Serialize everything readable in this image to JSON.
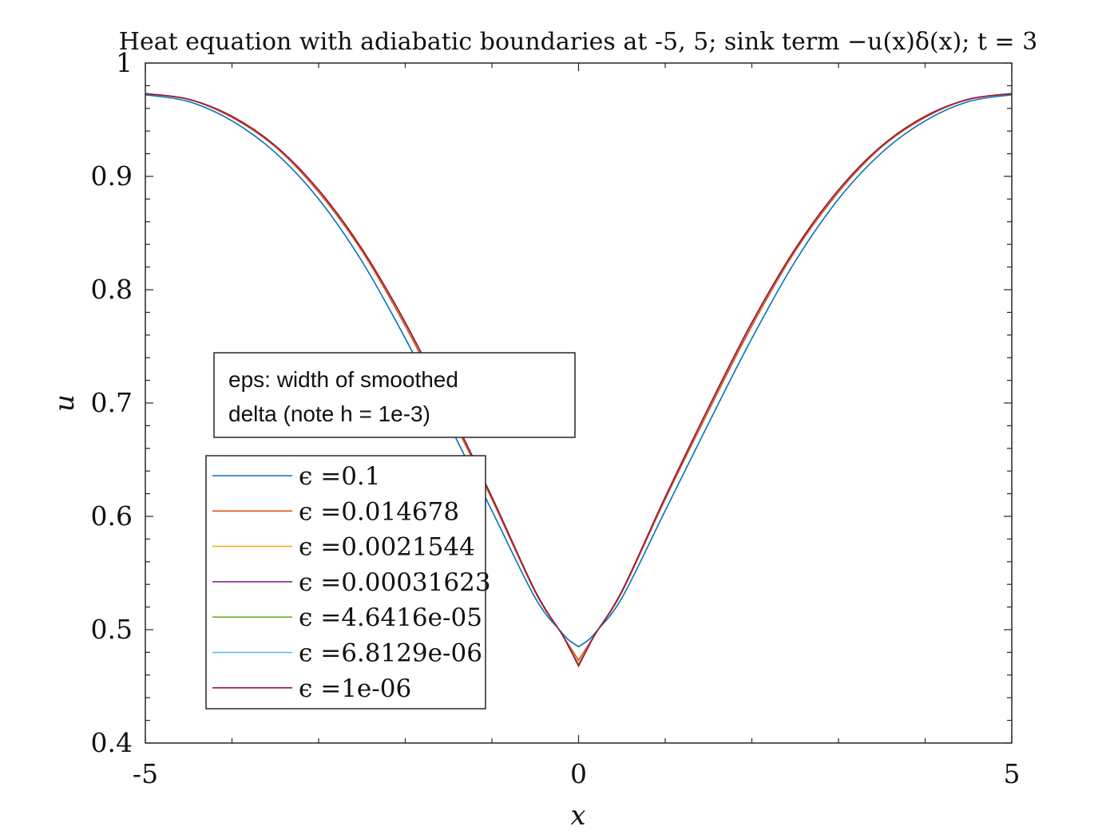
{
  "chart_data": {
    "type": "line",
    "title": "Heat equation with adiabatic boundaries at -5, 5; sink term −u(x)δ(x); t = 3",
    "xlabel": "x",
    "ylabel": "u",
    "xlim": [
      -5,
      5
    ],
    "ylim": [
      0.4,
      1
    ],
    "xticks": [
      "-5",
      "0",
      "5"
    ],
    "yticks": [
      "0.4",
      "0.5",
      "0.6",
      "0.7",
      "0.8",
      "0.9",
      "1"
    ],
    "grid": false,
    "legend_placement": "left",
    "annotation": {
      "line1": "eps: width of smoothed",
      "line2": "delta (note h = 1e-3)"
    },
    "x": [
      -5,
      -4.5,
      -4,
      -3.5,
      -3,
      -2.5,
      -2,
      -1.5,
      -1,
      -0.5,
      -0.2,
      -0.1,
      0,
      0.1,
      0.2,
      0.5,
      1,
      1.5,
      2,
      2.5,
      3,
      3.5,
      4,
      4.5,
      5
    ],
    "series": [
      {
        "name": "ϵ =0.1",
        "color": "#0072bd",
        "values": [
          0.972,
          0.966,
          0.949,
          0.921,
          0.88,
          0.825,
          0.757,
          0.682,
          0.605,
          0.528,
          0.498,
          0.49,
          0.485,
          0.49,
          0.498,
          0.528,
          0.605,
          0.682,
          0.757,
          0.825,
          0.88,
          0.921,
          0.949,
          0.966,
          0.972
        ]
      },
      {
        "name": "ϵ =0.014678",
        "color": "#d95319",
        "values": [
          0.973,
          0.968,
          0.952,
          0.926,
          0.886,
          0.834,
          0.768,
          0.693,
          0.615,
          0.533,
          0.497,
          0.485,
          0.473,
          0.485,
          0.497,
          0.533,
          0.615,
          0.693,
          0.768,
          0.834,
          0.886,
          0.926,
          0.952,
          0.968,
          0.973
        ]
      },
      {
        "name": "ϵ =0.0021544",
        "color": "#edb120",
        "values": [
          0.973,
          0.968,
          0.953,
          0.927,
          0.888,
          0.836,
          0.771,
          0.696,
          0.617,
          0.534,
          0.497,
          0.483,
          0.47,
          0.483,
          0.497,
          0.534,
          0.617,
          0.696,
          0.771,
          0.836,
          0.888,
          0.927,
          0.953,
          0.968,
          0.973
        ]
      },
      {
        "name": "ϵ =0.00031623",
        "color": "#7e2f8e",
        "values": [
          0.973,
          0.968,
          0.953,
          0.927,
          0.888,
          0.836,
          0.771,
          0.696,
          0.617,
          0.534,
          0.497,
          0.483,
          0.469,
          0.483,
          0.497,
          0.534,
          0.617,
          0.696,
          0.771,
          0.836,
          0.888,
          0.927,
          0.953,
          0.968,
          0.973
        ]
      },
      {
        "name": "ϵ =4.6416e-05",
        "color": "#77ac30",
        "values": [
          0.973,
          0.968,
          0.953,
          0.927,
          0.888,
          0.836,
          0.771,
          0.696,
          0.617,
          0.534,
          0.497,
          0.483,
          0.469,
          0.483,
          0.497,
          0.534,
          0.617,
          0.696,
          0.771,
          0.836,
          0.888,
          0.927,
          0.953,
          0.968,
          0.973
        ]
      },
      {
        "name": "ϵ =6.8129e-06",
        "color": "#4dbeee",
        "values": [
          0.973,
          0.968,
          0.953,
          0.927,
          0.888,
          0.836,
          0.771,
          0.696,
          0.617,
          0.534,
          0.497,
          0.483,
          0.468,
          0.483,
          0.497,
          0.534,
          0.617,
          0.696,
          0.771,
          0.836,
          0.888,
          0.927,
          0.953,
          0.968,
          0.973
        ]
      },
      {
        "name": "ϵ =1e-06",
        "color": "#a2142f",
        "values": [
          0.973,
          0.968,
          0.953,
          0.927,
          0.888,
          0.836,
          0.771,
          0.696,
          0.617,
          0.534,
          0.497,
          0.483,
          0.468,
          0.483,
          0.497,
          0.534,
          0.617,
          0.696,
          0.771,
          0.836,
          0.888,
          0.927,
          0.953,
          0.968,
          0.973
        ]
      }
    ]
  }
}
